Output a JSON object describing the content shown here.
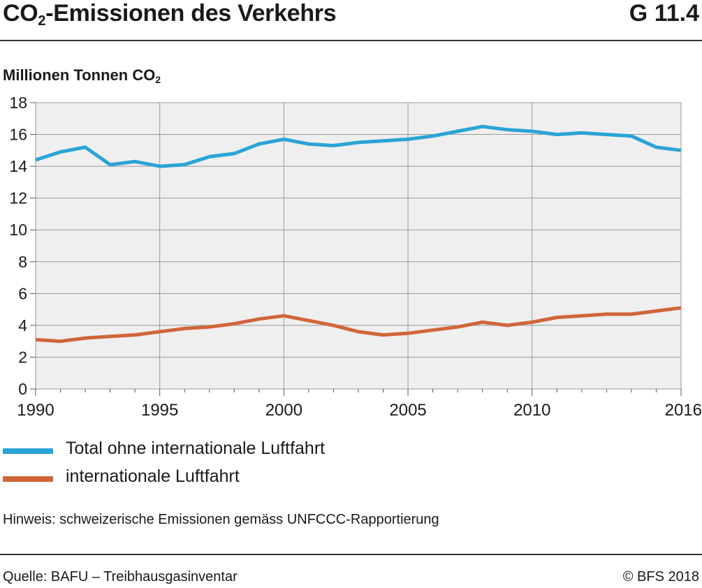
{
  "header": {
    "title_main": "CO",
    "title_sub": "2",
    "title_rest": "-Emissionen des Verkehrs",
    "code": "G 11.4"
  },
  "y_axis_label": {
    "main": "Millionen Tonnen CO",
    "sub": "2"
  },
  "footer": {
    "note": "Hinweis: schweizerische Emissionen gemäss UNFCCC-Rapportierung",
    "source": "Quelle: BAFU – Treibhausgasinventar",
    "copyright": "© BFS 2018"
  },
  "chart_data": {
    "type": "line",
    "x": [
      1990,
      1991,
      1992,
      1993,
      1994,
      1995,
      1996,
      1997,
      1998,
      1999,
      2000,
      2001,
      2002,
      2003,
      2004,
      2005,
      2006,
      2007,
      2008,
      2009,
      2010,
      2011,
      2012,
      2013,
      2014,
      2015,
      2016
    ],
    "series": [
      {
        "name": "Total ohne internationale Luftfahrt",
        "color": "#2aa4d5",
        "values": [
          14.4,
          14.9,
          15.2,
          14.1,
          14.3,
          14.0,
          14.1,
          14.6,
          14.8,
          15.4,
          15.7,
          15.4,
          15.3,
          15.5,
          15.6,
          15.7,
          15.9,
          16.2,
          16.5,
          16.3,
          16.2,
          16.0,
          16.1,
          16.0,
          15.9,
          15.2,
          15.0
        ]
      },
      {
        "name": "internationale Luftfahrt",
        "color": "#d1653a",
        "values": [
          3.1,
          3.0,
          3.2,
          3.3,
          3.4,
          3.6,
          3.8,
          3.9,
          4.1,
          4.4,
          4.6,
          4.3,
          4.0,
          3.6,
          3.4,
          3.5,
          3.7,
          3.9,
          4.2,
          4.0,
          4.2,
          4.5,
          4.6,
          4.7,
          4.7,
          4.9,
          5.1
        ]
      }
    ],
    "ylim": [
      0,
      18
    ],
    "y_ticks": [
      0,
      2,
      4,
      6,
      8,
      10,
      12,
      14,
      16,
      18
    ],
    "x_ticks": [
      1990,
      1995,
      2000,
      2005,
      2010,
      2016
    ],
    "xlim": [
      1990,
      2016
    ],
    "grid": true,
    "legend_position": "bottom-left"
  }
}
